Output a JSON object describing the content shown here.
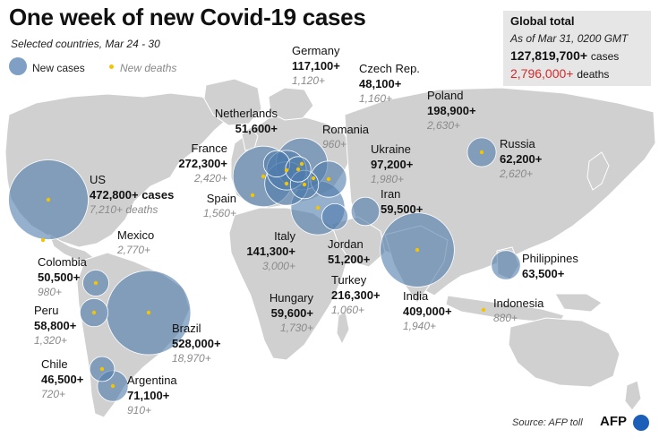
{
  "header": {
    "title": "One week of new Covid-19 cases",
    "subtitle": "Selected countries, Mar 24 - 30"
  },
  "legend": {
    "new_cases_label": "New cases",
    "new_deaths_label": "New deaths"
  },
  "global_total": {
    "title": "Global total",
    "as_of": "As of Mar 31, 0200 GMT",
    "cases_value": "127,819,700+",
    "cases_unit": "cases",
    "deaths_value": "2,796,000+",
    "deaths_unit": "deaths"
  },
  "colors": {
    "bubble": "#4f7bab",
    "death_dot": "#f2c500",
    "land": "#d0d0d0",
    "ocean": "#ffffff",
    "deaths_highlight": "#d62a2a",
    "afp_blue": "#1c5fb8"
  },
  "countries": [
    {
      "id": "us",
      "name": "US",
      "cases": "472,800+ cases",
      "deaths": "7,210+ deaths",
      "new_cases": 472800,
      "new_deaths": 7210
    },
    {
      "id": "mexico",
      "name": "Mexico",
      "cases": "",
      "deaths": "2,770+",
      "new_cases": 0,
      "new_deaths": 2770
    },
    {
      "id": "colombia",
      "name": "Colombia",
      "cases": "50,500+",
      "deaths": "980+",
      "new_cases": 50500,
      "new_deaths": 980
    },
    {
      "id": "peru",
      "name": "Peru",
      "cases": "58,800+",
      "deaths": "1,320+",
      "new_cases": 58800,
      "new_deaths": 1320
    },
    {
      "id": "brazil",
      "name": "Brazil",
      "cases": "528,000+",
      "deaths": "18,970+",
      "new_cases": 528000,
      "new_deaths": 18970
    },
    {
      "id": "chile",
      "name": "Chile",
      "cases": "46,500+",
      "deaths": "720+",
      "new_cases": 46500,
      "new_deaths": 720
    },
    {
      "id": "argentina",
      "name": "Argentina",
      "cases": "71,100+",
      "deaths": "910+",
      "new_cases": 71100,
      "new_deaths": 910
    },
    {
      "id": "germany",
      "name": "Germany",
      "cases": "117,100+",
      "deaths": "1,120+",
      "new_cases": 117100,
      "new_deaths": 1120
    },
    {
      "id": "czech",
      "name": "Czech Rep.",
      "cases": "48,100+",
      "deaths": "1,160+",
      "new_cases": 48100,
      "new_deaths": 1160
    },
    {
      "id": "poland",
      "name": "Poland",
      "cases": "198,900+",
      "deaths": "2,630+",
      "new_cases": 198900,
      "new_deaths": 2630
    },
    {
      "id": "netherlands",
      "name": "Netherlands",
      "cases": "51,600+",
      "deaths": "",
      "new_cases": 51600,
      "new_deaths": 0
    },
    {
      "id": "romania",
      "name": "Romania",
      "cases": "",
      "deaths": "960+",
      "new_cases": 0,
      "new_deaths": 960
    },
    {
      "id": "france",
      "name": "France",
      "cases": "272,300+",
      "deaths": "2,420+",
      "new_cases": 272300,
      "new_deaths": 2420
    },
    {
      "id": "spain",
      "name": "Spain",
      "cases": "",
      "deaths": "1,560+",
      "new_cases": 0,
      "new_deaths": 1560
    },
    {
      "id": "ukraine",
      "name": "Ukraine",
      "cases": "97,200+",
      "deaths": "1,980+",
      "new_cases": 97200,
      "new_deaths": 1980
    },
    {
      "id": "iran",
      "name": "Iran",
      "cases": "59,500+",
      "deaths": "",
      "new_cases": 59500,
      "new_deaths": 0
    },
    {
      "id": "russia",
      "name": "Russia",
      "cases": "62,200+",
      "deaths": "2,620+",
      "new_cases": 62200,
      "new_deaths": 2620
    },
    {
      "id": "italy",
      "name": "Italy",
      "cases": "141,300+",
      "deaths": "3,000+",
      "new_cases": 141300,
      "new_deaths": 3000
    },
    {
      "id": "jordan",
      "name": "Jordan",
      "cases": "51,200+",
      "deaths": "",
      "new_cases": 51200,
      "new_deaths": 0
    },
    {
      "id": "turkey",
      "name": "Turkey",
      "cases": "216,300+",
      "deaths": "1,060+",
      "new_cases": 216300,
      "new_deaths": 1060
    },
    {
      "id": "hungary",
      "name": "Hungary",
      "cases": "59,600+",
      "deaths": "1,730+",
      "new_cases": 59600,
      "new_deaths": 1730
    },
    {
      "id": "india",
      "name": "India",
      "cases": "409,000+",
      "deaths": "1,940+",
      "new_cases": 409000,
      "new_deaths": 1940
    },
    {
      "id": "philippines",
      "name": "Philippines",
      "cases": "63,500+",
      "deaths": "",
      "new_cases": 63500,
      "new_deaths": 0
    },
    {
      "id": "indonesia",
      "name": "Indonesia",
      "cases": "",
      "deaths": "880+",
      "new_cases": 0,
      "new_deaths": 880
    }
  ],
  "footer": {
    "source": "Source: AFP toll",
    "logo_text": "AFP"
  }
}
